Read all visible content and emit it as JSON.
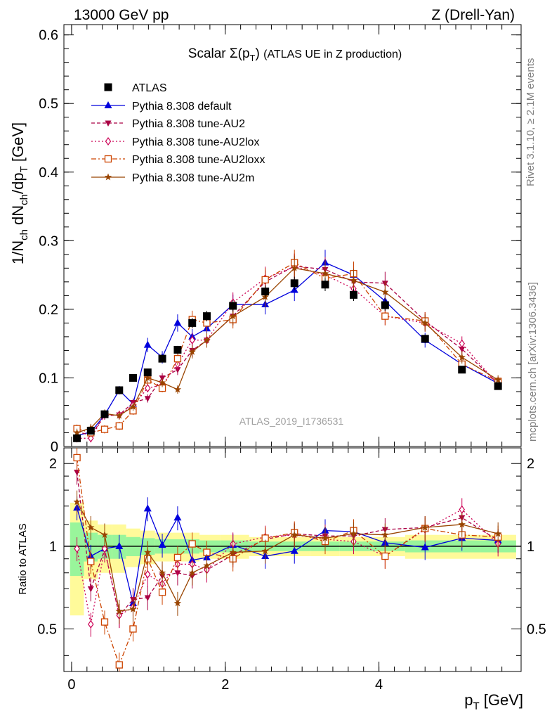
{
  "header": {
    "left": "13000 GeV pp",
    "right": "Z (Drell-Yan)"
  },
  "side_labels": {
    "top": "Rivet 3.1.10, ≥ 2.1M events",
    "bottom": "mcplots.cern.ch [arXiv:1306.3436]"
  },
  "watermark": "ATLAS_2019_I1736531",
  "chart_data": {
    "type": "scatter",
    "title": "Scalar Σ(p_T) (ATLAS UE in Z production)",
    "xlabel": "p_T [GeV]",
    "ylabel": "1/N_ch dN_ch/dp_T [GeV]",
    "ratio_ylabel": "Ratio to ATLAS",
    "xlim": [
      -0.1,
      5.85
    ],
    "ylim": [
      0,
      0.615
    ],
    "ratio_ylim": [
      0.35,
      2.28
    ],
    "x_ticks": [
      0,
      2,
      4
    ],
    "y_ticks": [
      0,
      0.1,
      0.2,
      0.3,
      0.4,
      0.5,
      0.6
    ],
    "y_tick_labels": [
      "0",
      "0.1",
      "0.2",
      "0.3",
      "0.4",
      "0.5",
      "0.6"
    ],
    "ratio_ticks": [
      0.5,
      1,
      2
    ],
    "x": [
      0.07,
      0.25,
      0.43,
      0.62,
      0.8,
      0.99,
      1.18,
      1.38,
      1.57,
      1.76,
      2.1,
      2.52,
      2.9,
      3.3,
      3.67,
      4.08,
      4.6,
      5.08,
      5.55
    ],
    "ratio_band_half_width": [
      0.22,
      0.12,
      0.1,
      0.1,
      0.08,
      0.07,
      0.06,
      0.06,
      0.06,
      0.05,
      0.05,
      0.04,
      0.04,
      0.04,
      0.04,
      0.04,
      0.05,
      0.05,
      0.05
    ],
    "series": [
      {
        "name": "ATLAS",
        "color": "#000000",
        "marker": "square-filled",
        "dash": "",
        "values": [
          0.012,
          0.023,
          0.047,
          0.082,
          0.1,
          0.108,
          0.128,
          0.141,
          0.18,
          0.19,
          0.205,
          0.226,
          0.238,
          0.236,
          0.221,
          0.206,
          0.157,
          0.112,
          0.088
        ],
        "ratio": [
          1,
          1,
          1,
          1,
          1,
          1,
          1,
          1,
          1,
          1,
          1,
          1,
          1,
          1,
          1,
          1,
          1,
          1,
          1
        ]
      },
      {
        "name": "Pythia 8.308 default",
        "color": "#0000dd",
        "marker": "triangle-up",
        "dash": "",
        "values": [
          0.016,
          0.021,
          0.046,
          0.082,
          0.062,
          0.148,
          0.13,
          0.18,
          0.16,
          0.172,
          0.207,
          0.207,
          0.228,
          0.268,
          0.25,
          0.212,
          0.155,
          0.12,
          0.092
        ],
        "ratio": [
          1.38,
          0.92,
          0.98,
          1.0,
          0.62,
          1.37,
          1.01,
          1.27,
          0.89,
          0.91,
          1.01,
          0.92,
          0.96,
          1.14,
          1.13,
          1.03,
          0.99,
          1.07,
          1.05
        ]
      },
      {
        "name": "Pythia 8.308 tune-AU2",
        "color": "#aa0044",
        "marker": "triangle-down",
        "dash": "5,3",
        "values": [
          0.022,
          0.016,
          0.045,
          0.046,
          0.064,
          0.07,
          0.1,
          0.112,
          0.14,
          0.155,
          0.19,
          0.24,
          0.263,
          0.258,
          0.24,
          0.238,
          0.183,
          0.142,
          0.092
        ],
        "ratio": [
          1.86,
          0.7,
          0.97,
          0.56,
          0.64,
          0.65,
          0.78,
          0.8,
          0.78,
          0.82,
          0.93,
          1.06,
          1.11,
          1.09,
          1.09,
          1.15,
          1.17,
          1.27,
          1.05
        ]
      },
      {
        "name": "Pythia 8.308 tune-AU2lox",
        "color": "#cc0055",
        "marker": "diamond-open",
        "dash": "2,3",
        "values": [
          0.012,
          0.012,
          0.046,
          0.046,
          0.06,
          0.085,
          0.09,
          0.12,
          0.155,
          0.155,
          0.21,
          0.245,
          0.262,
          0.25,
          0.23,
          0.19,
          0.18,
          0.15,
          0.09
        ],
        "ratio": [
          0.98,
          0.52,
          0.98,
          0.56,
          0.6,
          0.79,
          0.73,
          0.86,
          0.86,
          0.82,
          1.02,
          1.08,
          1.1,
          1.06,
          1.04,
          0.92,
          1.15,
          1.36,
          1.02
        ]
      },
      {
        "name": "Pythia 8.308 tune-AU2loxx",
        "color": "#cc4400",
        "marker": "square-open",
        "dash": "7,3,2,3",
        "values": [
          0.026,
          0.02,
          0.025,
          0.03,
          0.052,
          0.097,
          0.085,
          0.128,
          0.185,
          0.18,
          0.185,
          0.243,
          0.268,
          0.245,
          0.252,
          0.19,
          0.183,
          0.12,
          0.095
        ],
        "ratio": [
          2.1,
          0.88,
          0.53,
          0.37,
          0.5,
          0.9,
          0.68,
          0.91,
          1.02,
          0.95,
          0.9,
          1.07,
          1.12,
          1.04,
          1.14,
          0.92,
          1.16,
          1.1,
          1.08
        ]
      },
      {
        "name": "Pythia 8.308 tune-AU2m",
        "color": "#994400",
        "marker": "star",
        "dash": "",
        "values": [
          0.02,
          0.027,
          0.048,
          0.045,
          0.058,
          0.1,
          0.093,
          0.083,
          0.138,
          0.155,
          0.19,
          0.218,
          0.26,
          0.252,
          0.242,
          0.225,
          0.18,
          0.13,
          0.097
        ],
        "ratio": [
          1.45,
          1.17,
          1.1,
          0.58,
          0.59,
          0.95,
          0.8,
          0.62,
          0.8,
          0.85,
          0.95,
          0.96,
          1.1,
          1.07,
          1.11,
          1.1,
          1.17,
          1.2,
          1.11
        ]
      }
    ]
  }
}
